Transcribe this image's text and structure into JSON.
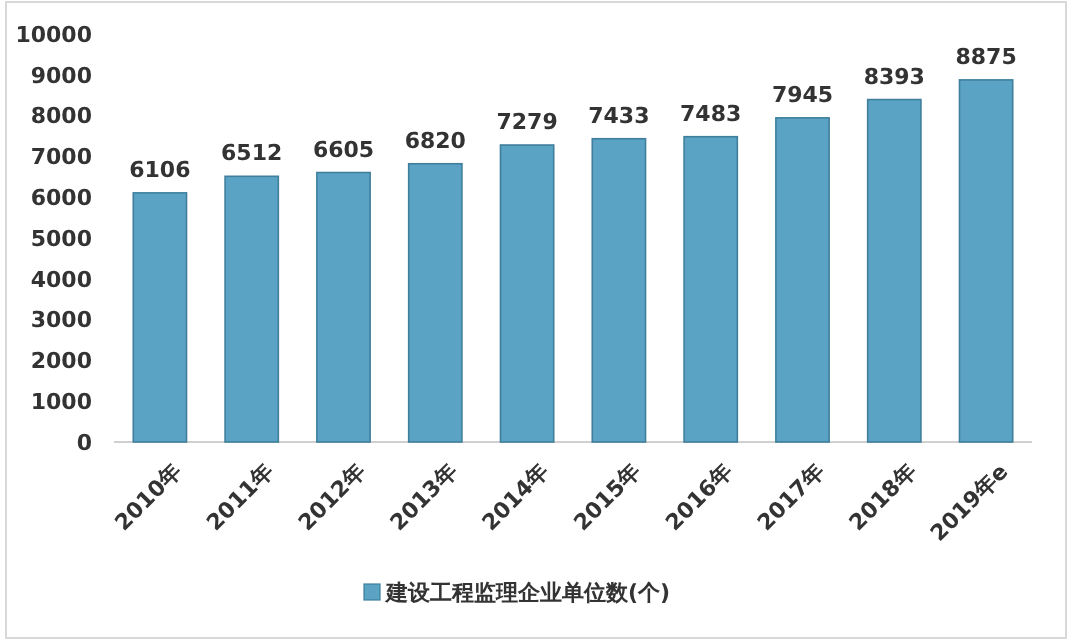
{
  "chart_data": {
    "type": "bar",
    "categories": [
      "2010年",
      "2011年",
      "2012年",
      "2013年",
      "2014年",
      "2015年",
      "2016年",
      "2017年",
      "2018年",
      "2019年e"
    ],
    "series": [
      {
        "name": "建设工程监理企业单位数(个)",
        "color": "#5aa3c5",
        "values": [
          6106,
          6512,
          6605,
          6820,
          7279,
          7433,
          7483,
          7945,
          8393,
          8875
        ]
      }
    ],
    "ylim": [
      0,
      10000
    ],
    "yticks": [
      0,
      1000,
      2000,
      3000,
      4000,
      5000,
      6000,
      7000,
      8000,
      9000,
      10000
    ],
    "grid": false,
    "legend": "bottom",
    "data_labels": true
  }
}
